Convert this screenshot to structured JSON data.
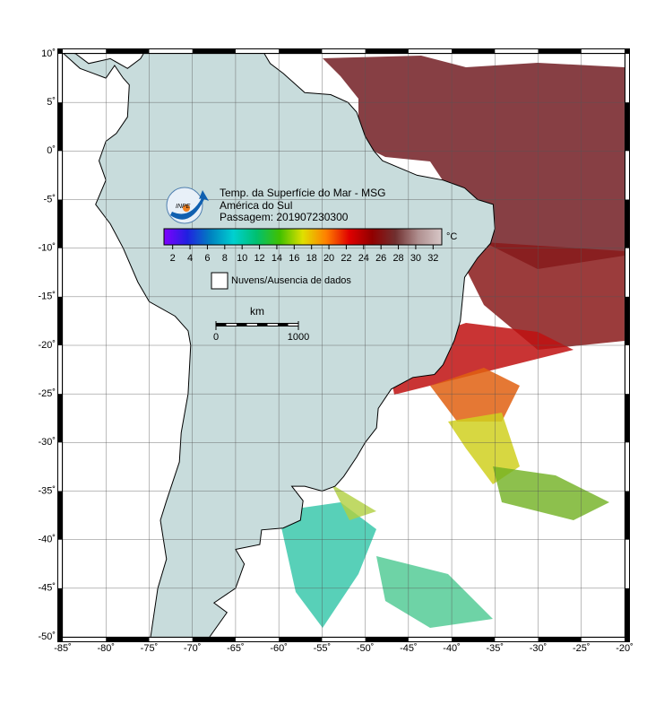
{
  "map": {
    "xlim": [
      -85,
      -20
    ],
    "ylim": [
      -50,
      10
    ],
    "xticks": [
      {
        "value": -85,
        "label": "-85˚"
      },
      {
        "value": -80,
        "label": "-80˚"
      },
      {
        "value": -75,
        "label": "-75˚"
      },
      {
        "value": -70,
        "label": "-70˚"
      },
      {
        "value": -65,
        "label": "-65˚"
      },
      {
        "value": -60,
        "label": "-60˚"
      },
      {
        "value": -55,
        "label": "-55˚"
      },
      {
        "value": -50,
        "label": "-50˚"
      },
      {
        "value": -45,
        "label": "-45˚"
      },
      {
        "value": -40,
        "label": "-40˚"
      },
      {
        "value": -35,
        "label": "-35˚"
      },
      {
        "value": -30,
        "label": "-30˚"
      },
      {
        "value": -25,
        "label": "-25˚"
      },
      {
        "value": -20,
        "label": "-20˚"
      }
    ],
    "yticks": [
      {
        "value": 10,
        "label": "10˚"
      },
      {
        "value": 5,
        "label": "5˚"
      },
      {
        "value": 0,
        "label": "0˚"
      },
      {
        "value": -5,
        "label": "-5˚"
      },
      {
        "value": -10,
        "label": "-10˚"
      },
      {
        "value": -15,
        "label": "-15˚"
      },
      {
        "value": -20,
        "label": "-20˚"
      },
      {
        "value": -25,
        "label": "-25˚"
      },
      {
        "value": -30,
        "label": "-30˚"
      },
      {
        "value": -35,
        "label": "-35˚"
      },
      {
        "value": -40,
        "label": "-40˚"
      },
      {
        "value": -45,
        "label": "-45˚"
      },
      {
        "value": -50,
        "label": "-50˚"
      }
    ],
    "grid": true,
    "land_color": "#c8dcdc"
  },
  "title": [
    "Temp. da Superfície do Mar - MSG",
    "América do Sul",
    "Passagem: 201907230300"
  ],
  "logo": "INPE",
  "colorbar": {
    "lim": [
      1,
      33
    ],
    "ticks": [
      2,
      4,
      6,
      8,
      10,
      12,
      14,
      16,
      18,
      20,
      22,
      24,
      26,
      28,
      30,
      32
    ],
    "unit": "°C",
    "colors": [
      "#8000ff",
      "#2020e0",
      "#0080c0",
      "#00d0d0",
      "#00c070",
      "#40c000",
      "#e0e000",
      "#ff8000",
      "#e00000",
      "#900000",
      "#703030",
      "#b09090",
      "#d8c8c8"
    ]
  },
  "legend": {
    "label": "Nuvens/Ausencia de dados"
  },
  "scale_bar": {
    "unit": "km",
    "ticks": [
      0,
      1000
    ]
  }
}
